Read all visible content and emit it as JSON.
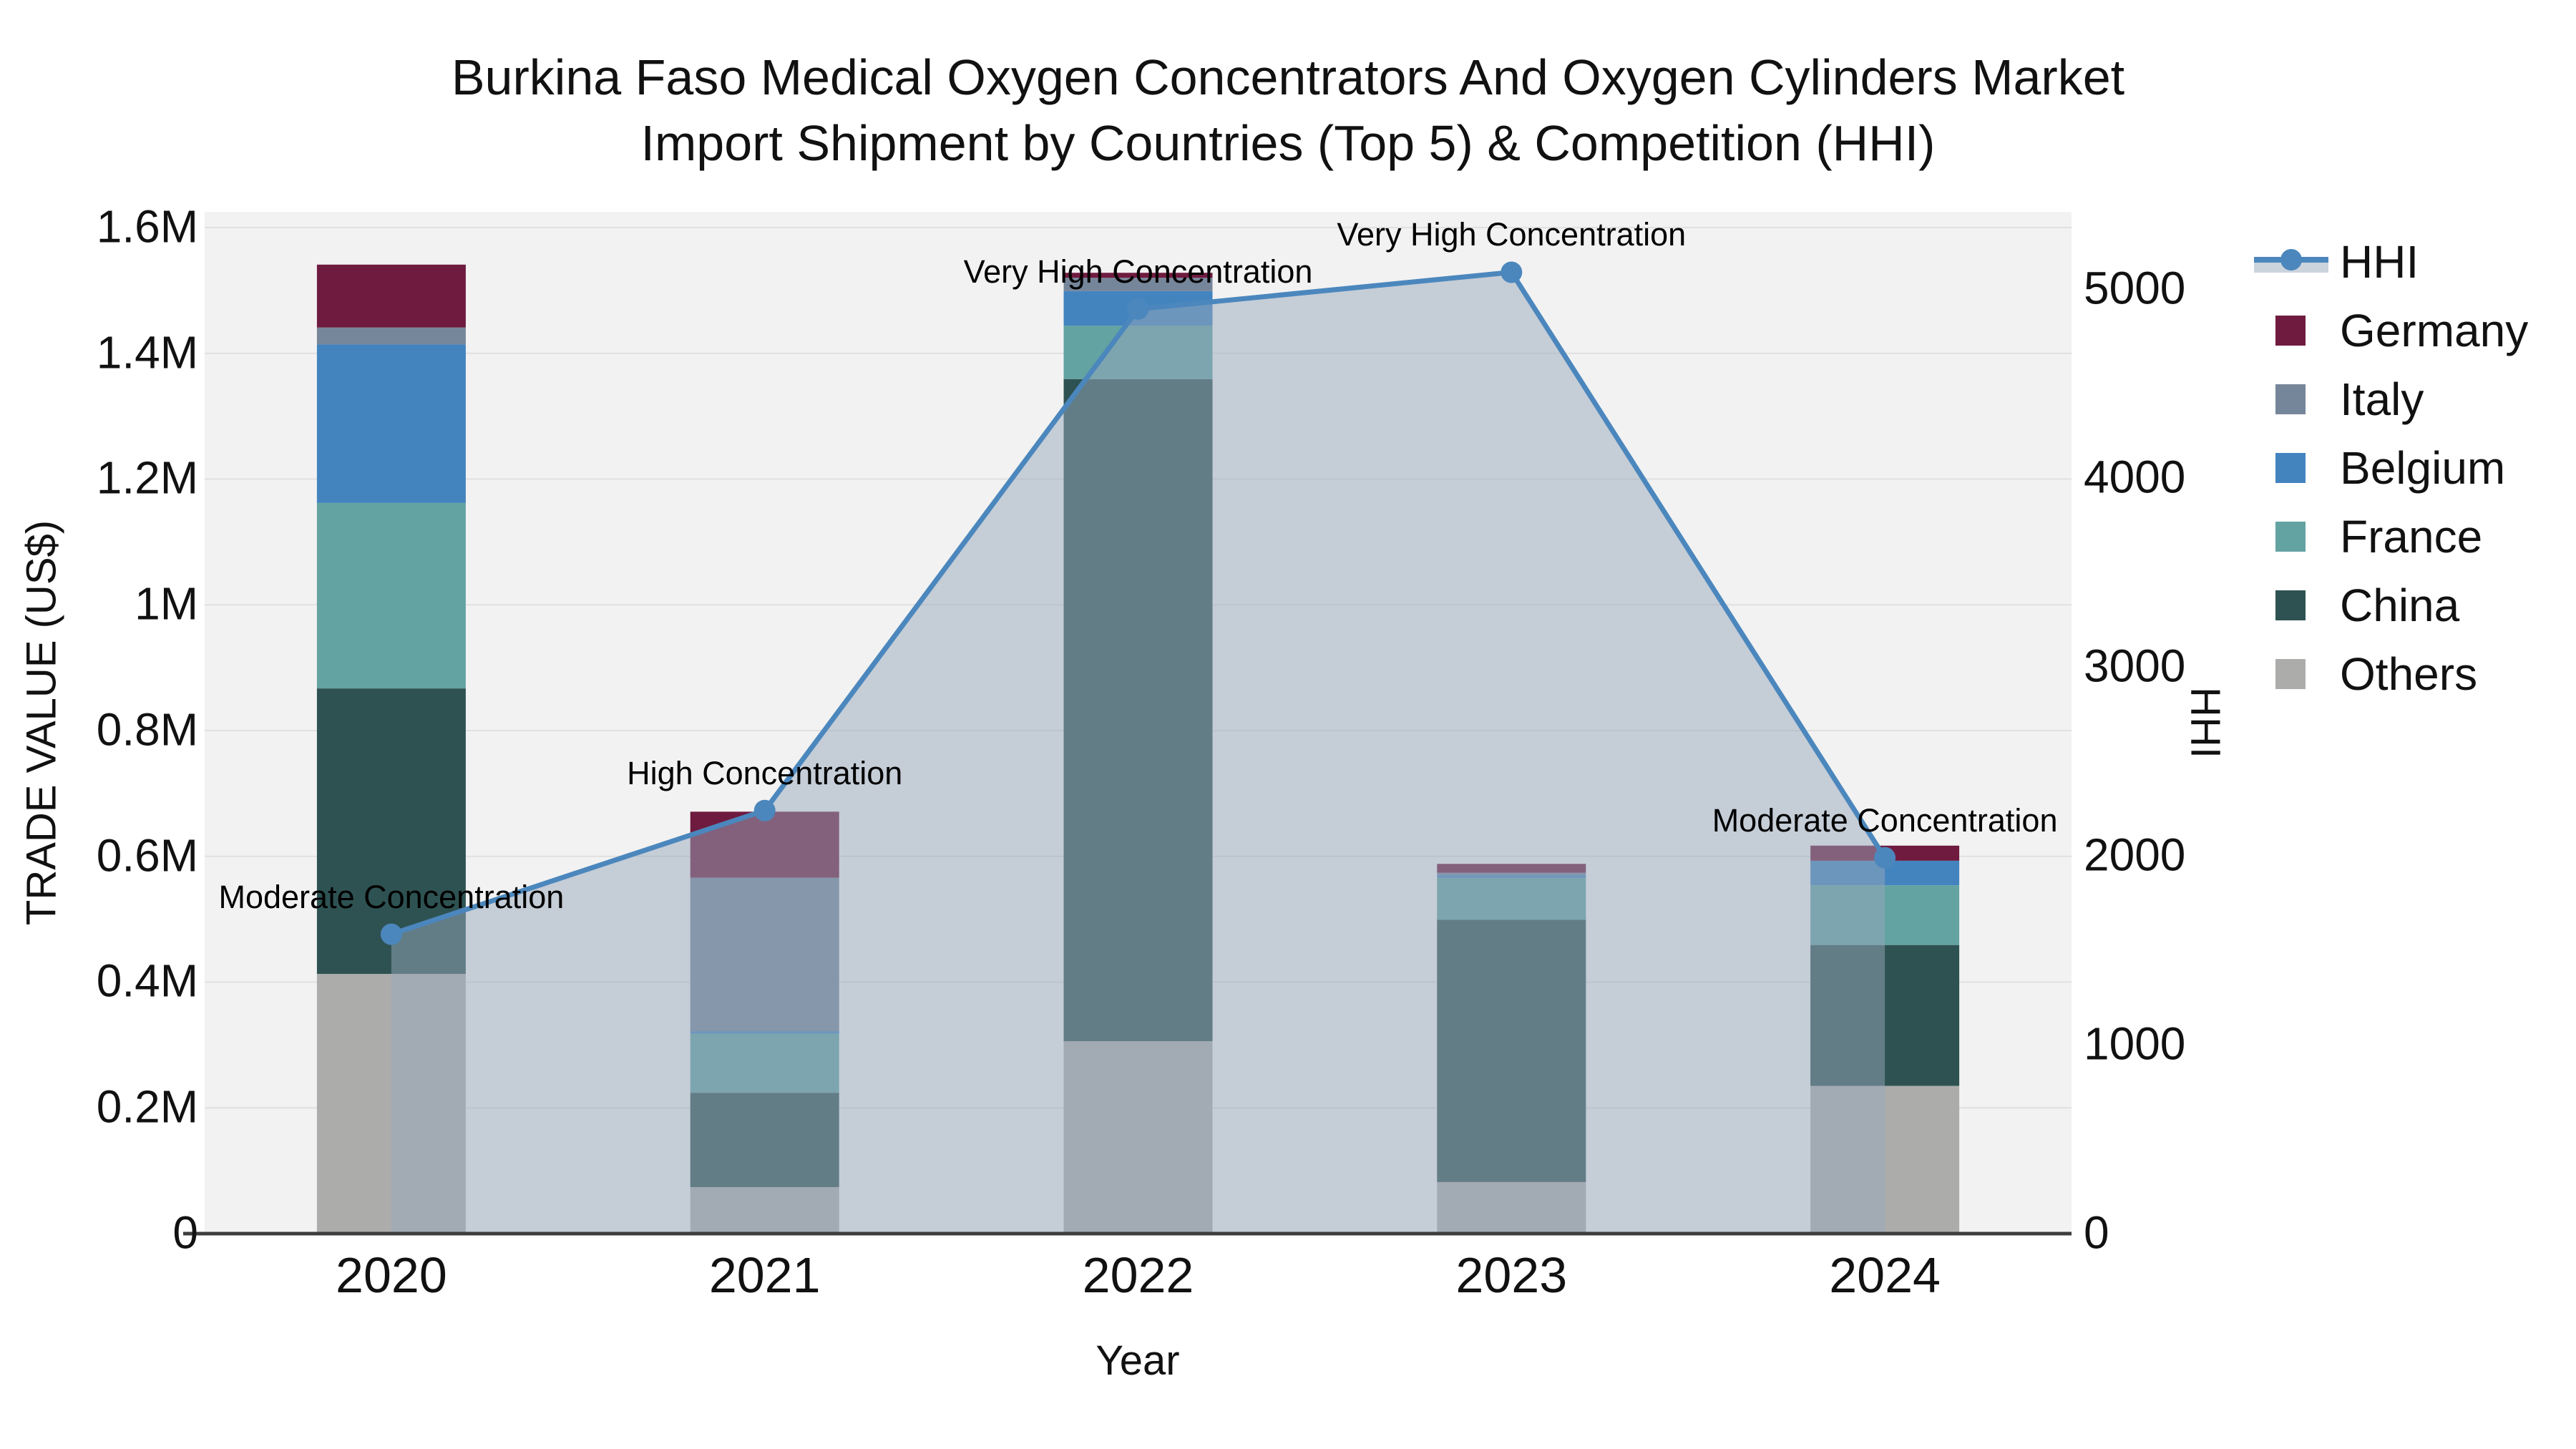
{
  "title": {
    "line1": "Burkina Faso Medical Oxygen Concentrators And Oxygen Cylinders Market",
    "line2": "Import Shipment by Countries (Top 5) & Competition (HHI)"
  },
  "legend": {
    "hhi_label": "HHI",
    "items": [
      {
        "label": "Germany",
        "color": "#6f1b3f"
      },
      {
        "label": "Italy",
        "color": "#76869a"
      },
      {
        "label": "Belgium",
        "color": "#4384bf"
      },
      {
        "label": "France",
        "color": "#63a3a2"
      },
      {
        "label": "China",
        "color": "#2e5252"
      },
      {
        "label": "Others",
        "color": "#acadab"
      }
    ]
  },
  "chart_data": {
    "type": "bar+line",
    "categories": [
      "2020",
      "2021",
      "2022",
      "2023",
      "2024"
    ],
    "stack_order_bottom_to_top": [
      "Others",
      "China",
      "France",
      "Belgium",
      "Italy",
      "Germany"
    ],
    "series": [
      {
        "name": "Germany",
        "color": "#6f1b3f",
        "values": [
          100000,
          105000,
          8000,
          14000,
          24000
        ]
      },
      {
        "name": "Italy",
        "color": "#76869a",
        "values": [
          27000,
          244000,
          21000,
          4000,
          0
        ]
      },
      {
        "name": "Belgium",
        "color": "#4384bf",
        "values": [
          252000,
          4000,
          55000,
          4000,
          39000
        ]
      },
      {
        "name": "France",
        "color": "#63a3a2",
        "values": [
          295000,
          94000,
          85000,
          67000,
          95000
        ]
      },
      {
        "name": "China",
        "color": "#2e5252",
        "values": [
          454000,
          150000,
          1053000,
          417000,
          224000
        ]
      },
      {
        "name": "Others",
        "color": "#acadab",
        "values": [
          413000,
          74000,
          306000,
          82000,
          235000
        ]
      }
    ],
    "line_series": {
      "name": "HHI",
      "color": "#4b87bd",
      "area_fill": "rgba(152,167,188,0.5)",
      "values": [
        1585,
        2240,
        4895,
        5090,
        1990
      ]
    },
    "annotations": [
      {
        "category": "2020",
        "text": "Moderate Concentration"
      },
      {
        "category": "2021",
        "text": "High Concentration"
      },
      {
        "category": "2022",
        "text": "Very High Concentration"
      },
      {
        "category": "2023",
        "text": "Very High Concentration"
      },
      {
        "category": "2024",
        "text": "Moderate Concentration"
      }
    ],
    "left_axis": {
      "title": "TRADE VALUE (US$)",
      "tick_labels": [
        "0",
        "0.2M",
        "0.4M",
        "0.6M",
        "0.8M",
        "1M",
        "1.2M",
        "1.4M",
        "1.6M"
      ],
      "tick_values": [
        0,
        200000,
        400000,
        600000,
        800000,
        1000000,
        1200000,
        1400000,
        1600000
      ],
      "range": [
        0,
        1625000
      ]
    },
    "right_axis": {
      "title": "HHI",
      "tick_labels": [
        "0",
        "1000",
        "2000",
        "3000",
        "4000",
        "5000"
      ],
      "tick_values": [
        0,
        1000,
        2000,
        3000,
        4000,
        5000
      ],
      "range": [
        0,
        5410
      ]
    },
    "x_axis": {
      "title": "Year"
    },
    "style": {
      "plot_bg": "#f2f2f2",
      "gridline_color": "#e0e0e0",
      "axis_line_color": "#3d3d3d"
    }
  }
}
